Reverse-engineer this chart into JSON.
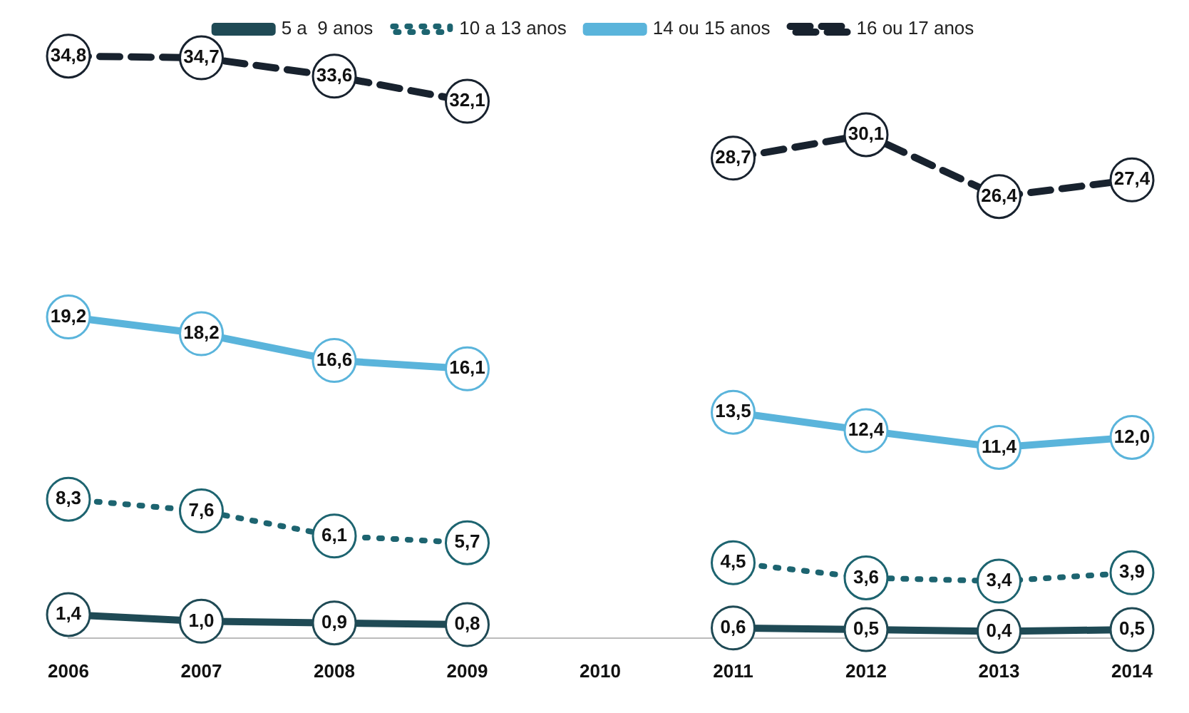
{
  "chart_data": {
    "type": "line",
    "categories": [
      "2006",
      "2007",
      "2008",
      "2009",
      "2010",
      "2011",
      "2012",
      "2013",
      "2014"
    ],
    "relative": false,
    "grid": false,
    "legend": "top",
    "marker": "circle",
    "series": [
      {
        "name": "5 a  9 anos",
        "color": "#1f4a55",
        "line_style": "solid",
        "values": [
          1.4,
          1.0,
          0.9,
          0.8,
          null,
          0.6,
          0.5,
          0.4,
          0.5
        ],
        "value_labels": [
          "1,4",
          "1,0",
          "0,9",
          "0,8",
          null,
          "0,6",
          "0,5",
          "0,4",
          "0,5"
        ]
      },
      {
        "name": "10 a 13 anos",
        "color": "#1d6470",
        "line_style": "dotted",
        "values": [
          8.3,
          7.6,
          6.1,
          5.7,
          null,
          4.5,
          3.6,
          3.4,
          3.9
        ],
        "value_labels": [
          "8,3",
          "7,6",
          "6,1",
          "5,7",
          null,
          "4,5",
          "3,6",
          "3,4",
          "3,9"
        ]
      },
      {
        "name": "14 ou 15 anos",
        "color": "#5ab4db",
        "line_style": "solid",
        "values": [
          19.2,
          18.2,
          16.6,
          16.1,
          null,
          13.5,
          12.4,
          11.4,
          12.0
        ],
        "value_labels": [
          "19,2",
          "18,2",
          "16,6",
          "16,1",
          null,
          "13,5",
          "12,4",
          "11,4",
          "12,0"
        ]
      },
      {
        "name": "16 ou 17 anos",
        "color": "#18222e",
        "line_style": "dashed",
        "values": [
          34.8,
          34.7,
          33.6,
          32.1,
          null,
          28.7,
          30.1,
          26.4,
          27.4
        ],
        "value_labels": [
          "34,8",
          "34,7",
          "33,6",
          "32,1",
          null,
          "28,7",
          "30,1",
          "26,4",
          "27,4"
        ]
      }
    ]
  }
}
